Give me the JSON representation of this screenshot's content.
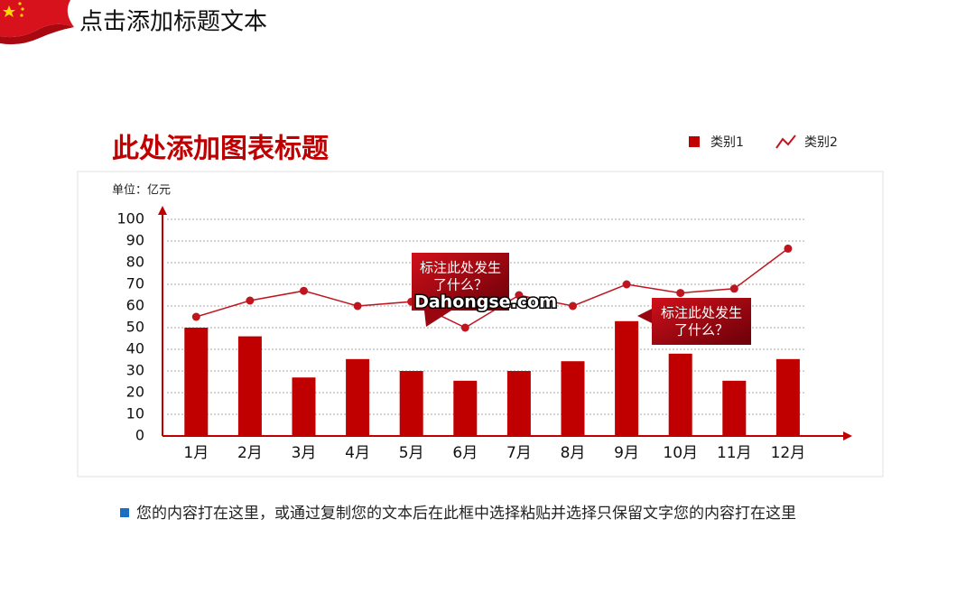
{
  "header": {
    "title": "点击添加标题文本"
  },
  "chart_data": {
    "type": "bar-line",
    "title": "此处添加图表标题",
    "unit_label": "单位：亿元",
    "categories": [
      "1月",
      "2月",
      "3月",
      "4月",
      "5月",
      "6月",
      "7月",
      "8月",
      "9月",
      "10月",
      "11月",
      "12月"
    ],
    "series": [
      {
        "name": "类别1",
        "type": "bar",
        "color": "#c00000",
        "values": [
          50,
          46,
          27,
          35.5,
          30,
          25.5,
          30,
          34.5,
          53,
          38,
          25.5,
          35.5
        ]
      },
      {
        "name": "类别2",
        "type": "line",
        "color": "#c0141e",
        "values": [
          55,
          62.5,
          67,
          60,
          62,
          50,
          65,
          60,
          70,
          66,
          68,
          86.5
        ]
      }
    ],
    "ylim": [
      0,
      100
    ],
    "yticks": [
      0,
      10,
      20,
      30,
      40,
      50,
      60,
      70,
      80,
      90,
      100
    ],
    "grid": true,
    "annotations": [
      {
        "lines": [
          "标注此处发生",
          "了什么？"
        ]
      },
      {
        "lines": [
          "标注此处发生",
          "了什么？"
        ]
      }
    ],
    "watermark": "Dahongse.com"
  },
  "footnote": "您的内容打在这里，或通过复制您的文本后在此框中选择粘贴并选择只保留文字您的内容打在这里"
}
